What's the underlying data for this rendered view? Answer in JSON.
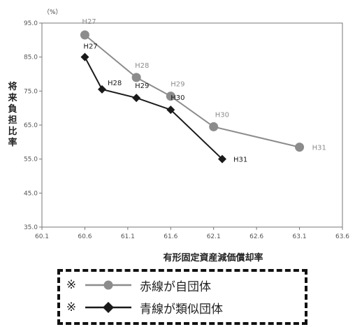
{
  "chart_data": {
    "type": "scatter",
    "unit_label": "（%）",
    "xlabel": "有形固定資産減価償却率",
    "ylabel": "将来負担比率",
    "xlim": [
      60.1,
      63.6
    ],
    "ylim": [
      35.0,
      95.0
    ],
    "x_ticks": [
      "60.1",
      "60.6",
      "61.1",
      "61.6",
      "62.1",
      "62.6",
      "63.1",
      "63.6"
    ],
    "y_ticks": [
      "35.0",
      "45.0",
      "55.0",
      "65.0",
      "75.0",
      "85.0",
      "95.0"
    ],
    "grid": false,
    "series": [
      {
        "name": "赤線が自団体",
        "color": "#8c8c8c",
        "marker": "circle",
        "points": [
          {
            "x": 60.6,
            "y": 91.5,
            "label": "H27"
          },
          {
            "x": 61.2,
            "y": 79.0,
            "label": "H28"
          },
          {
            "x": 61.6,
            "y": 73.5,
            "label": "H29"
          },
          {
            "x": 62.1,
            "y": 64.5,
            "label": "H30"
          },
          {
            "x": 63.1,
            "y": 58.5,
            "label": "H31"
          }
        ]
      },
      {
        "name": "青線が類似団体",
        "color": "#1a1a1a",
        "marker": "diamond",
        "points": [
          {
            "x": 60.6,
            "y": 85.0,
            "label": "H27"
          },
          {
            "x": 60.8,
            "y": 75.5,
            "label": "H28"
          },
          {
            "x": 61.2,
            "y": 73.0,
            "label": "H29"
          },
          {
            "x": 61.6,
            "y": 69.5,
            "label": "H30"
          },
          {
            "x": 62.2,
            "y": 55.0,
            "label": "H31"
          }
        ]
      }
    ]
  },
  "legend": {
    "mark": "※",
    "items": [
      {
        "text": "赤線が自団体",
        "color": "#8c8c8c",
        "marker": "circle"
      },
      {
        "text": "青線が類似団体",
        "color": "#1a1a1a",
        "marker": "diamond"
      }
    ]
  }
}
